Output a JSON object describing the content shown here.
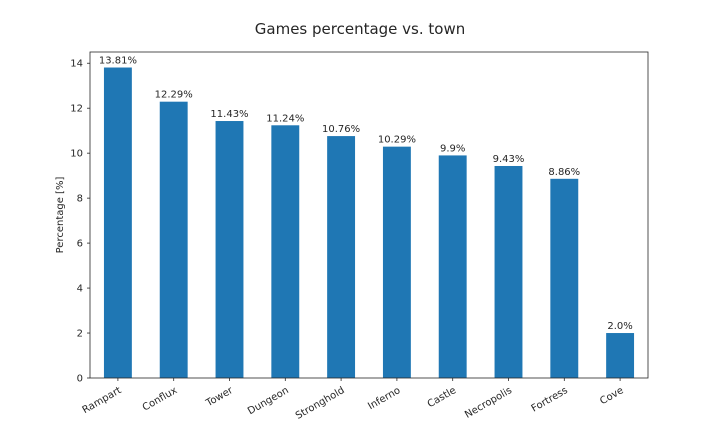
{
  "chart_data": {
    "type": "bar",
    "title": "Games percentage vs. town",
    "xlabel": "",
    "ylabel": "Percentage [%]",
    "categories": [
      "Rampart",
      "Conflux",
      "Tower",
      "Dungeon",
      "Stronghold",
      "Inferno",
      "Castle",
      "Necropolis",
      "Fortress",
      "Cove"
    ],
    "values": [
      13.81,
      12.29,
      11.43,
      11.24,
      10.76,
      10.29,
      9.9,
      9.43,
      8.86,
      2.0
    ],
    "data_labels": [
      "13.81%",
      "12.29%",
      "11.43%",
      "11.24%",
      "10.76%",
      "10.29%",
      "9.9%",
      "9.43%",
      "8.86%",
      "2.0%"
    ],
    "ylim": [
      0,
      14.5
    ],
    "yticks": [
      0,
      2,
      4,
      6,
      8,
      10,
      12,
      14
    ],
    "grid": false,
    "legend": "none",
    "bar_color": "#1f77b4"
  }
}
